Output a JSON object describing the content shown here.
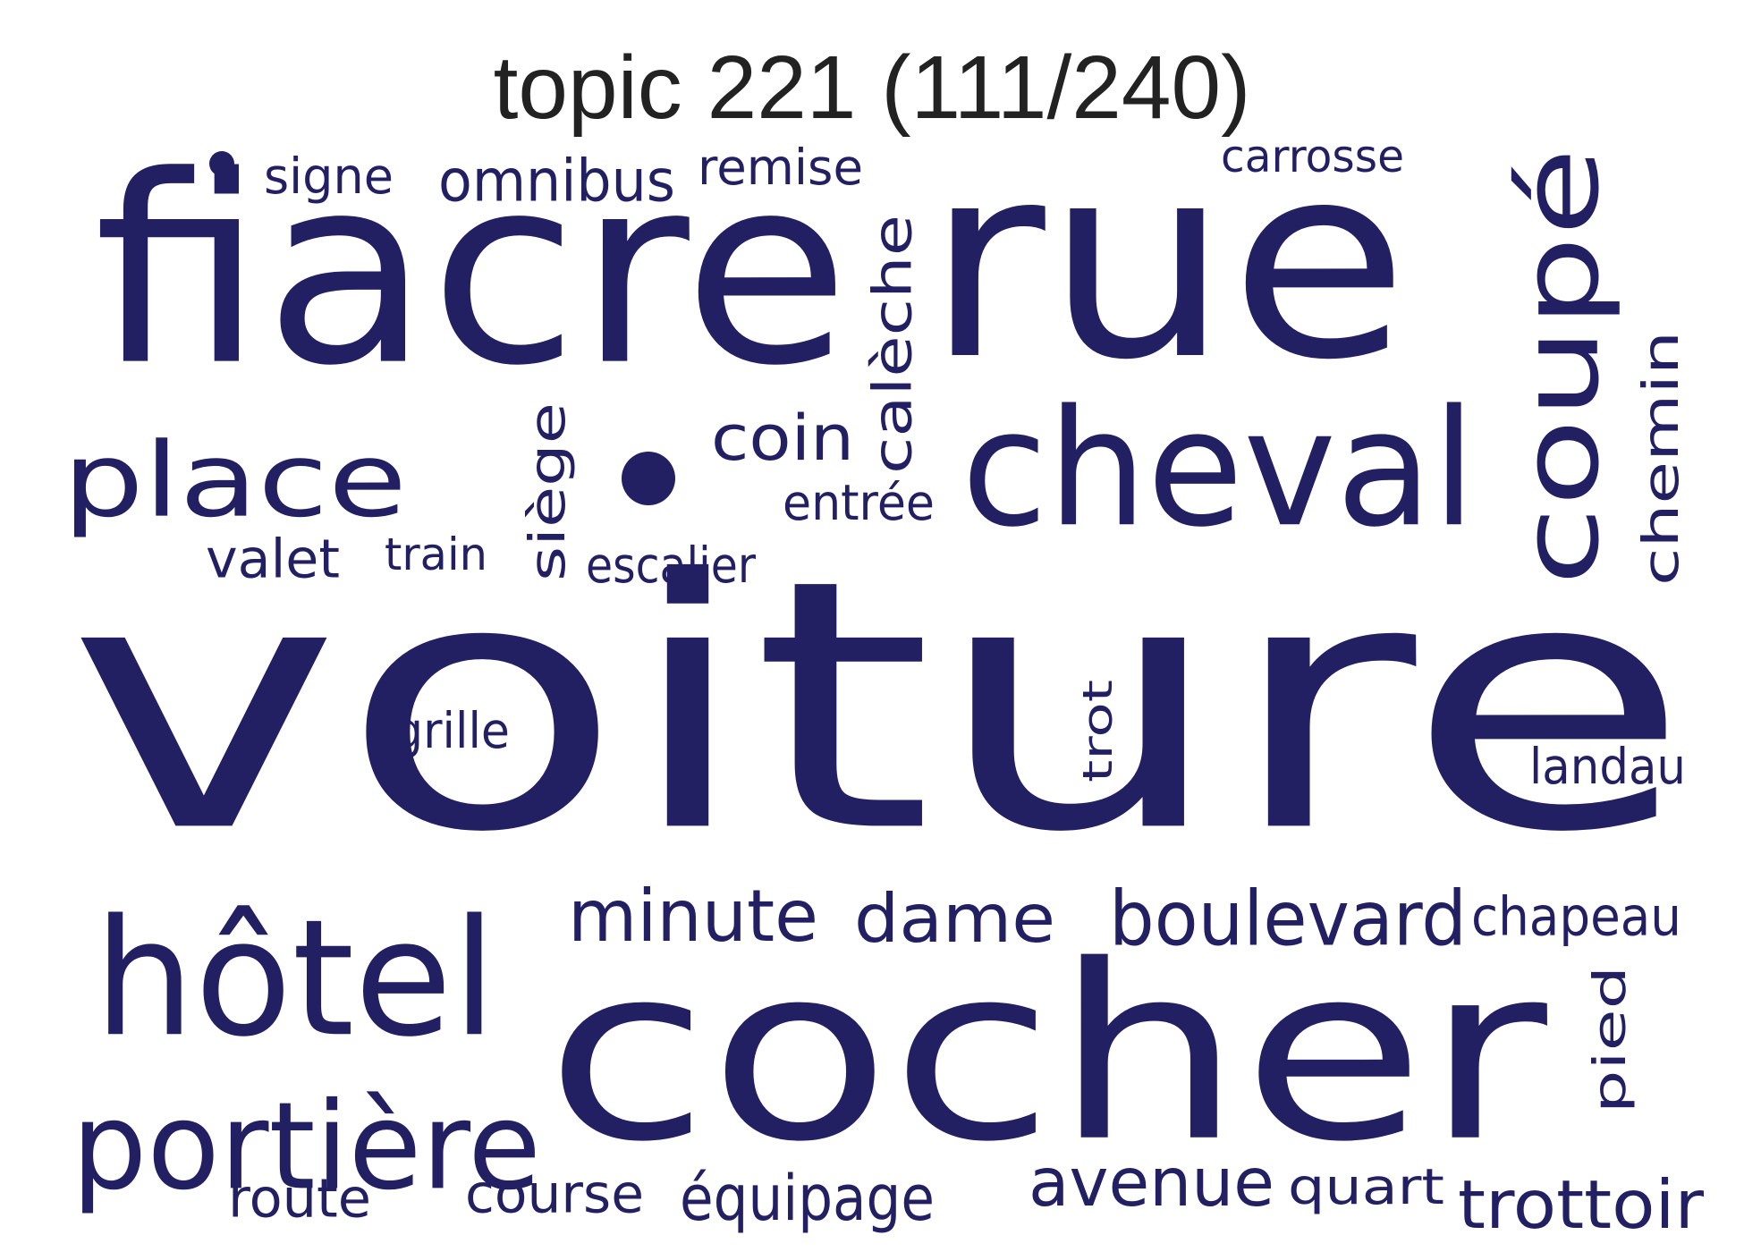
{
  "title": "topic 221 (111/240)",
  "color": "#221f63",
  "words": [
    {
      "text": "voiture",
      "orientation": "horizontal"
    },
    {
      "text": "cocher",
      "orientation": "horizontal"
    },
    {
      "text": "fiacre",
      "orientation": "horizontal"
    },
    {
      "text": "rue",
      "orientation": "horizontal"
    },
    {
      "text": "hôtel",
      "orientation": "horizontal"
    },
    {
      "text": "cheval",
      "orientation": "horizontal"
    },
    {
      "text": "portière",
      "orientation": "horizontal"
    },
    {
      "text": "place",
      "orientation": "horizontal"
    },
    {
      "text": "coupé",
      "orientation": "vertical"
    },
    {
      "text": "boulevard",
      "orientation": "horizontal"
    },
    {
      "text": "minute",
      "orientation": "horizontal"
    },
    {
      "text": "dame",
      "orientation": "horizontal"
    },
    {
      "text": "coin",
      "orientation": "horizontal"
    },
    {
      "text": "calèche",
      "orientation": "vertical"
    },
    {
      "text": "avenue",
      "orientation": "horizontal"
    },
    {
      "text": "trottoir",
      "orientation": "horizontal"
    },
    {
      "text": "chemin",
      "orientation": "vertical"
    },
    {
      "text": "siège",
      "orientation": "vertical"
    },
    {
      "text": "omnibus",
      "orientation": "horizontal"
    },
    {
      "text": "équipage",
      "orientation": "horizontal"
    },
    {
      "text": "chapeau",
      "orientation": "horizontal"
    },
    {
      "text": "pied",
      "orientation": "vertical"
    },
    {
      "text": "valet",
      "orientation": "horizontal"
    },
    {
      "text": "quart",
      "orientation": "horizontal"
    },
    {
      "text": "course",
      "orientation": "horizontal"
    },
    {
      "text": "route",
      "orientation": "horizontal"
    },
    {
      "text": "remise",
      "orientation": "horizontal"
    },
    {
      "text": "signe",
      "orientation": "horizontal"
    },
    {
      "text": "entrée",
      "orientation": "horizontal"
    },
    {
      "text": "escalier",
      "orientation": "horizontal"
    },
    {
      "text": "train",
      "orientation": "horizontal"
    },
    {
      "text": "carrosse",
      "orientation": "horizontal"
    },
    {
      "text": "grille",
      "orientation": "horizontal"
    },
    {
      "text": "landau",
      "orientation": "horizontal"
    },
    {
      "text": "trot",
      "orientation": "vertical"
    }
  ]
}
